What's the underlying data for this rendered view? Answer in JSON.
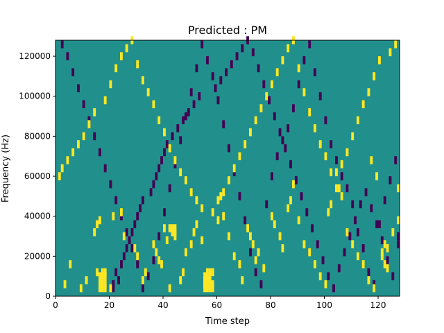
{
  "chart_data": {
    "type": "heatmap",
    "title": "Predicted : PM",
    "xlabel": "Time step",
    "ylabel": "Frequency (Hz)",
    "xlim": [
      0,
      128
    ],
    "ylim": [
      0,
      128000
    ],
    "x_ticks": [
      0,
      20,
      40,
      60,
      80,
      100,
      120
    ],
    "y_ticks": [
      0,
      20000,
      40000,
      60000,
      80000,
      100000,
      120000
    ],
    "x_tick_labels": [
      "0",
      "20",
      "40",
      "60",
      "80",
      "100",
      "120"
    ],
    "y_tick_labels": [
      "0",
      "20000",
      "40000",
      "60000",
      "80000",
      "100000",
      "120000"
    ],
    "grid": false,
    "colormap": "viridis",
    "colors": {
      "background": "#21908c",
      "high": "#fde725",
      "low": "#440154"
    },
    "bin_size": {
      "time": 1,
      "frequency": 2000
    },
    "background_value": 0,
    "yellow_value": 1,
    "purple_value": -1,
    "yellow_cells": [
      [
        16,
        2
      ],
      [
        16,
        4
      ],
      [
        17,
        2
      ],
      [
        17,
        4
      ],
      [
        18,
        2
      ],
      [
        18,
        4
      ],
      [
        17,
        6
      ],
      [
        17,
        8
      ],
      [
        17,
        10
      ],
      [
        16,
        6
      ],
      [
        16,
        8
      ],
      [
        18,
        8
      ],
      [
        18,
        10
      ],
      [
        55,
        2
      ],
      [
        55,
        4
      ],
      [
        55,
        6
      ],
      [
        55,
        8
      ],
      [
        56,
        2
      ],
      [
        56,
        4
      ],
      [
        56,
        6
      ],
      [
        56,
        8
      ],
      [
        56,
        10
      ],
      [
        57,
        2
      ],
      [
        57,
        4
      ],
      [
        57,
        6
      ],
      [
        57,
        10
      ],
      [
        58,
        2
      ],
      [
        58,
        4
      ],
      [
        58,
        10
      ],
      [
        42,
        32
      ],
      [
        43,
        30
      ],
      [
        43,
        32
      ],
      [
        44,
        28
      ],
      [
        44,
        30
      ],
      [
        44,
        32
      ],
      [
        41,
        26
      ],
      [
        40,
        32
      ],
      [
        122,
        24
      ],
      [
        123,
        12
      ],
      [
        122,
        14
      ],
      [
        121,
        18
      ],
      [
        121,
        20
      ],
      [
        123,
        22
      ],
      [
        3,
        4
      ],
      [
        5,
        14
      ],
      [
        9,
        2
      ],
      [
        11,
        6
      ],
      [
        15,
        10
      ],
      [
        14,
        30
      ],
      [
        15,
        34
      ],
      [
        16,
        36
      ],
      [
        20,
        2
      ],
      [
        21,
        38
      ],
      [
        24,
        40
      ],
      [
        25,
        28
      ],
      [
        29,
        22
      ],
      [
        30,
        18
      ],
      [
        33,
        10
      ],
      [
        32,
        6
      ],
      [
        36,
        24
      ],
      [
        37,
        20
      ],
      [
        38,
        16
      ],
      [
        39,
        14
      ],
      [
        42,
        2
      ],
      [
        46,
        6
      ],
      [
        47,
        10
      ],
      [
        48,
        20
      ],
      [
        50,
        24
      ],
      [
        51,
        30
      ],
      [
        52,
        34
      ],
      [
        54,
        26
      ],
      [
        60,
        46
      ],
      [
        61,
        48
      ],
      [
        62,
        38
      ],
      [
        64,
        28
      ],
      [
        66,
        18
      ],
      [
        68,
        14
      ],
      [
        69,
        6
      ],
      [
        71,
        32
      ],
      [
        72,
        28
      ],
      [
        73,
        24
      ],
      [
        74,
        16
      ],
      [
        75,
        20
      ],
      [
        77,
        12
      ],
      [
        80,
        38
      ],
      [
        81,
        34
      ],
      [
        83,
        28
      ],
      [
        84,
        22
      ],
      [
        86,
        42
      ],
      [
        87,
        46
      ],
      [
        88,
        54
      ],
      [
        90,
        36
      ],
      [
        92,
        24
      ],
      [
        94,
        20
      ],
      [
        96,
        14
      ],
      [
        98,
        8
      ],
      [
        100,
        4
      ],
      [
        101,
        40
      ],
      [
        102,
        44
      ],
      [
        104,
        60
      ],
      [
        105,
        52
      ],
      [
        106,
        48
      ],
      [
        108,
        30
      ],
      [
        110,
        24
      ],
      [
        112,
        18
      ],
      [
        114,
        14
      ],
      [
        116,
        6
      ],
      [
        118,
        2
      ],
      [
        1,
        58
      ],
      [
        2,
        62
      ],
      [
        4,
        66
      ],
      [
        6,
        70
      ],
      [
        8,
        74
      ],
      [
        10,
        78
      ],
      [
        12,
        84
      ],
      [
        14,
        90
      ],
      [
        18,
        96
      ],
      [
        20,
        104
      ],
      [
        22,
        112
      ],
      [
        24,
        118
      ],
      [
        26,
        122
      ],
      [
        28,
        126
      ],
      [
        30,
        114
      ],
      [
        32,
        106
      ],
      [
        34,
        100
      ],
      [
        36,
        94
      ],
      [
        38,
        86
      ],
      [
        40,
        80
      ],
      [
        42,
        72
      ],
      [
        44,
        66
      ],
      [
        46,
        60
      ],
      [
        48,
        56
      ],
      [
        50,
        50
      ],
      [
        52,
        46
      ],
      [
        54,
        42
      ],
      [
        58,
        40
      ],
      [
        60,
        36
      ],
      [
        62,
        50
      ],
      [
        64,
        56
      ],
      [
        66,
        62
      ],
      [
        68,
        68
      ],
      [
        70,
        74
      ],
      [
        72,
        80
      ],
      [
        74,
        86
      ],
      [
        76,
        92
      ],
      [
        78,
        98
      ],
      [
        80,
        104
      ],
      [
        82,
        110
      ],
      [
        84,
        116
      ],
      [
        86,
        122
      ],
      [
        88,
        126
      ],
      [
        90,
        112
      ],
      [
        92,
        100
      ],
      [
        94,
        90
      ],
      [
        96,
        82
      ],
      [
        98,
        74
      ],
      [
        100,
        68
      ],
      [
        102,
        60
      ],
      [
        104,
        52
      ],
      [
        106,
        64
      ],
      [
        108,
        70
      ],
      [
        110,
        78
      ],
      [
        112,
        86
      ],
      [
        114,
        94
      ],
      [
        116,
        100
      ],
      [
        118,
        108
      ],
      [
        120,
        116
      ],
      [
        124,
        120
      ],
      [
        126,
        124
      ],
      [
        127,
        52
      ],
      [
        125,
        30
      ],
      [
        127,
        36
      ],
      [
        119,
        58
      ],
      [
        117,
        66
      ]
    ],
    "purple_cells": [
      [
        21,
        4
      ],
      [
        21,
        2
      ],
      [
        22,
        10
      ],
      [
        23,
        6
      ],
      [
        24,
        14
      ],
      [
        25,
        18
      ],
      [
        26,
        22
      ],
      [
        27,
        26
      ],
      [
        28,
        30
      ],
      [
        29,
        34
      ],
      [
        30,
        38
      ],
      [
        31,
        42
      ],
      [
        32,
        46
      ],
      [
        35,
        50
      ],
      [
        36,
        54
      ],
      [
        37,
        58
      ],
      [
        38,
        62
      ],
      [
        39,
        66
      ],
      [
        40,
        70
      ],
      [
        41,
        74
      ],
      [
        43,
        78
      ],
      [
        45,
        82
      ],
      [
        47,
        86
      ],
      [
        49,
        90
      ],
      [
        51,
        94
      ],
      [
        53,
        98
      ],
      [
        59,
        102
      ],
      [
        61,
        106
      ],
      [
        63,
        110
      ],
      [
        65,
        114
      ],
      [
        67,
        118
      ],
      [
        69,
        122
      ],
      [
        71,
        126
      ],
      [
        73,
        120
      ],
      [
        75,
        112
      ],
      [
        77,
        104
      ],
      [
        79,
        96
      ],
      [
        81,
        88
      ],
      [
        83,
        80
      ],
      [
        85,
        72
      ],
      [
        87,
        64
      ],
      [
        89,
        56
      ],
      [
        91,
        48
      ],
      [
        93,
        40
      ],
      [
        95,
        32
      ],
      [
        97,
        24
      ],
      [
        99,
        16
      ],
      [
        101,
        8
      ],
      [
        103,
        2
      ],
      [
        105,
        12
      ],
      [
        107,
        20
      ],
      [
        109,
        28
      ],
      [
        111,
        36
      ],
      [
        113,
        44
      ],
      [
        115,
        50
      ],
      [
        117,
        42
      ],
      [
        119,
        34
      ],
      [
        121,
        26
      ],
      [
        123,
        16
      ],
      [
        125,
        8
      ],
      [
        127,
        28
      ],
      [
        127,
        24
      ],
      [
        2,
        124
      ],
      [
        4,
        118
      ],
      [
        6,
        110
      ],
      [
        8,
        102
      ],
      [
        10,
        94
      ],
      [
        12,
        86
      ],
      [
        14,
        78
      ],
      [
        16,
        70
      ],
      [
        18,
        62
      ],
      [
        20,
        54
      ],
      [
        22,
        46
      ],
      [
        24,
        38
      ],
      [
        26,
        30
      ],
      [
        28,
        22
      ],
      [
        30,
        14
      ],
      [
        32,
        2
      ],
      [
        34,
        8
      ],
      [
        36,
        16
      ],
      [
        38,
        28
      ],
      [
        40,
        40
      ],
      [
        42,
        52
      ],
      [
        44,
        64
      ],
      [
        46,
        76
      ],
      [
        48,
        88
      ],
      [
        50,
        100
      ],
      [
        52,
        112
      ],
      [
        54,
        124
      ],
      [
        56,
        116
      ],
      [
        58,
        108
      ],
      [
        60,
        96
      ],
      [
        62,
        84
      ],
      [
        64,
        72
      ],
      [
        66,
        60
      ],
      [
        68,
        48
      ],
      [
        70,
        36
      ],
      [
        72,
        20
      ],
      [
        74,
        10
      ],
      [
        76,
        4
      ],
      [
        78,
        44
      ],
      [
        80,
        58
      ],
      [
        82,
        68
      ],
      [
        84,
        76
      ],
      [
        86,
        82
      ],
      [
        88,
        92
      ],
      [
        90,
        104
      ],
      [
        92,
        116
      ],
      [
        94,
        124
      ],
      [
        96,
        110
      ],
      [
        98,
        98
      ],
      [
        100,
        86
      ],
      [
        102,
        74
      ],
      [
        104,
        66
      ],
      [
        106,
        58
      ],
      [
        108,
        52
      ],
      [
        110,
        44
      ],
      [
        112,
        30
      ],
      [
        114,
        22
      ],
      [
        116,
        10
      ],
      [
        118,
        4
      ],
      [
        120,
        34
      ],
      [
        122,
        46
      ],
      [
        124,
        56
      ],
      [
        126,
        66
      ]
    ]
  }
}
